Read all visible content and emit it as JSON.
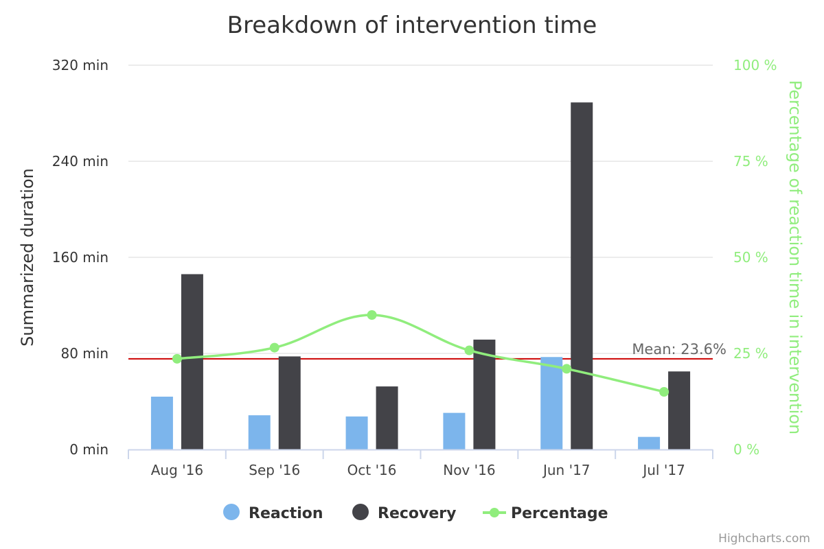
{
  "chart_data": {
    "type": "bar",
    "title": "Breakdown of intervention time",
    "categories": [
      "Aug '16",
      "Sep '16",
      "Oct '16",
      "Nov '16",
      "Jun '17",
      "Jul '17"
    ],
    "y_left": {
      "label": "Summarized duration",
      "range": [
        0,
        320
      ],
      "ticks": [
        0,
        80,
        160,
        240,
        320
      ],
      "tick_labels": [
        "0 min",
        "80 min",
        "160 min",
        "240 min",
        "320 min"
      ]
    },
    "y_right": {
      "label": "Percentage of reaction time in intervention",
      "range": [
        0,
        100
      ],
      "ticks": [
        0,
        25,
        50,
        75,
        100
      ],
      "tick_labels": [
        "0 %",
        "25 %",
        "50 %",
        "75 %",
        "100 %"
      ],
      "color": "#90ed7d"
    },
    "series": [
      {
        "name": "Reaction",
        "type": "bar",
        "axis": "left",
        "color": "#7cb5ec",
        "values": [
          44,
          28.5,
          27.5,
          30.5,
          77,
          10.5
        ]
      },
      {
        "name": "Recovery",
        "type": "bar",
        "axis": "left",
        "color": "#434348",
        "values": [
          146,
          77.5,
          52.5,
          91.5,
          289,
          65
        ]
      },
      {
        "name": "Percentage",
        "type": "spline",
        "axis": "right",
        "color": "#90ed7d",
        "values": [
          23.6,
          26.5,
          35,
          25.8,
          21,
          15
        ]
      }
    ],
    "plot_lines": [
      {
        "label": "Mean: 23.6%",
        "axis": "right",
        "value": 23.6,
        "color": "#cc0000"
      }
    ],
    "grid": true,
    "legend": "bottom-center"
  },
  "legend": {
    "items": [
      {
        "label": "Reaction",
        "symbol": "circle",
        "color": "#7cb5ec"
      },
      {
        "label": "Recovery",
        "symbol": "circle",
        "color": "#434348"
      },
      {
        "label": "Percentage",
        "symbol": "line-marker",
        "color": "#90ed7d"
      }
    ]
  },
  "credits": "Highcharts.com"
}
